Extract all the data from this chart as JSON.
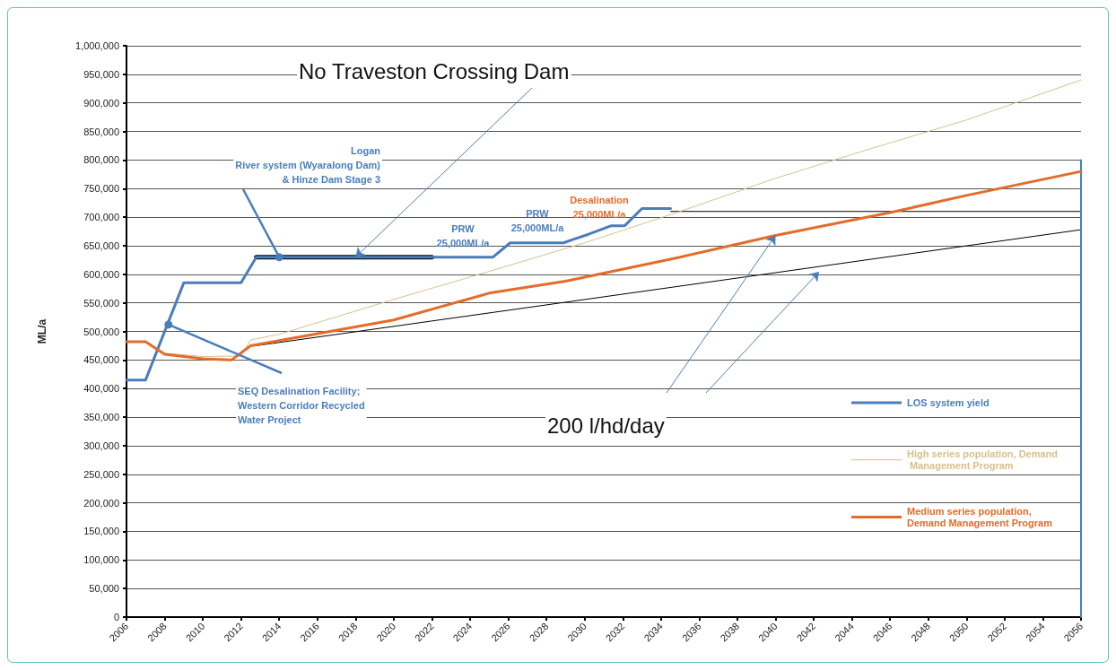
{
  "chart_data": {
    "type": "line",
    "ylabel": "ML/a",
    "xlim": [
      2006,
      2056
    ],
    "xticks": [
      2006,
      2008,
      2010,
      2012,
      2014,
      2016,
      2018,
      2020,
      2022,
      2024,
      2026,
      2028,
      2030,
      2032,
      2034,
      2036,
      2038,
      2040,
      2042,
      2044,
      2046,
      2048,
      2050,
      2052,
      2054,
      2056
    ],
    "ylim": [
      0,
      1000000
    ],
    "yticks": [
      0,
      {
        "value": 50000,
        "label": "50,000"
      },
      {
        "value": 100000,
        "label": "100,000"
      },
      {
        "value": 150000,
        "label": "150,000"
      },
      {
        "value": 200000,
        "label": "200,000"
      },
      {
        "value": 250000,
        "label": "250,000"
      },
      {
        "value": 300000,
        "label": "300,000"
      },
      {
        "value": 350000,
        "label": "350,000"
      },
      {
        "value": 400000,
        "label": "400,000"
      },
      {
        "value": 450000,
        "label": "450,000"
      },
      {
        "value": 500000,
        "label": "500,000"
      },
      {
        "value": 550000,
        "label": "550,000"
      },
      {
        "value": 600000,
        "label": "600,000"
      },
      {
        "value": 650000,
        "label": "650,000"
      },
      {
        "value": 700000,
        "label": "700,000"
      },
      {
        "value": 750000,
        "label": "750,000"
      },
      {
        "value": 800000,
        "label": "800,000"
      },
      {
        "value": 850000,
        "label": "850,000"
      },
      {
        "value": 900000,
        "label": "900,000"
      },
      {
        "value": 950000,
        "label": "950,000"
      },
      {
        "value": 1000000,
        "label": "1,000,000"
      }
    ],
    "grid": "y",
    "legend": "right",
    "series": [
      {
        "name": "LOS system yield",
        "color": "#4a7ebb",
        "x": [
          2006,
          2007,
          2009,
          2012,
          2012.8,
          2025.2,
          2026.1,
          2028.9,
          2029.3,
          2030.2,
          2031.4,
          2032.1,
          2033,
          2034.5
        ],
        "values": [
          415000,
          415000,
          585000,
          585000,
          630000,
          630000,
          655000,
          655000,
          660000,
          670000,
          685000,
          685000,
          715000,
          715000
        ]
      },
      {
        "name": "High series population, Demand Management Program",
        "color": "#d9c08c",
        "x": [
          2006,
          2007,
          2008,
          2010,
          2012,
          2012.5,
          2014,
          2020,
          2025,
          2030,
          2035,
          2040,
          2045,
          2050,
          2056
        ],
        "values": [
          482000,
          482000,
          462000,
          456000,
          457000,
          485000,
          495000,
          556000,
          605000,
          655000,
          710000,
          768000,
          820000,
          870000,
          940000
        ]
      },
      {
        "name": "Medium series population, Demand Management Program",
        "color": "#e46c2a",
        "x": [
          2006,
          2007,
          2008,
          2010,
          2011.5,
          2012.5,
          2020,
          2025,
          2029,
          2035,
          2040,
          2046,
          2050,
          2056
        ],
        "values": [
          482000,
          482000,
          460000,
          452000,
          450000,
          475000,
          520000,
          567000,
          588000,
          630000,
          668000,
          708000,
          738000,
          780000
        ]
      },
      {
        "color": "#000000",
        "x": [
          2012.8,
          2056
        ],
        "values": [
          475000,
          678000
        ]
      },
      {
        "color": "#000000",
        "x": [
          2012.8,
          2022
        ],
        "values": [
          630000,
          630000
        ]
      },
      {
        "color": "#000000",
        "x": [
          2034.5,
          2056
        ],
        "values": [
          710000,
          710000
        ]
      },
      {
        "color": "#4a7ebb",
        "x": [
          2056,
          2056
        ],
        "values": [
          0,
          800000
        ]
      }
    ],
    "annotations": [
      {
        "text": "No Traveston Crossing Dam",
        "x": 2018,
        "y": 630000
      },
      {
        "text": "Logan\nRiver system (Wyaralong Dam)\n& Hinze Dam Stage 3",
        "x": 2014,
        "y": 630000
      },
      {
        "text": "SEQ Desalination Facility;\nWestern Corridor Recycled\nWater Project",
        "x": 2008.2,
        "y": 512000
      },
      "PRW\n25,000ML/a",
      "PRW\n25,000ML/a",
      "Desalination\n25,000ML/a",
      {
        "text": "200 l/hd/day",
        "x": 2040,
        "y": 668000
      }
    ]
  }
}
